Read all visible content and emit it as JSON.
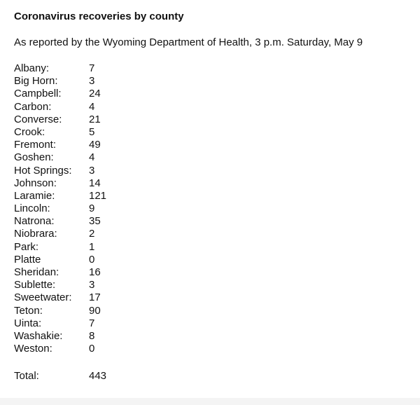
{
  "title": "Coronavirus recoveries by county",
  "subtitle": "As reported by the Wyoming Department of Health, 3 p.m. Saturday, May 9",
  "counties": [
    {
      "name": "Albany:",
      "value": "7"
    },
    {
      "name": "Big Horn:",
      "value": "3"
    },
    {
      "name": "Campbell:",
      "value": "24"
    },
    {
      "name": "Carbon:",
      "value": "4"
    },
    {
      "name": "Converse:",
      "value": "21"
    },
    {
      "name": "Crook:",
      "value": "5"
    },
    {
      "name": "Fremont:",
      "value": "49"
    },
    {
      "name": "Goshen:",
      "value": "4"
    },
    {
      "name": "Hot Springs:",
      "value": "3"
    },
    {
      "name": "Johnson:",
      "value": "14"
    },
    {
      "name": "Laramie:",
      "value": "121"
    },
    {
      "name": "Lincoln:",
      "value": "9"
    },
    {
      "name": "Natrona:",
      "value": "35"
    },
    {
      "name": "Niobrara:",
      "value": "2"
    },
    {
      "name": "Park:",
      "value": "1"
    },
    {
      "name": "Platte",
      "value": "0"
    },
    {
      "name": "Sheridan:",
      "value": "16"
    },
    {
      "name": "Sublette:",
      "value": "3"
    },
    {
      "name": "Sweetwater:",
      "value": "17"
    },
    {
      "name": "Teton:",
      "value": "90"
    },
    {
      "name": "Uinta:",
      "value": "7"
    },
    {
      "name": "Washakie:",
      "value": "8"
    },
    {
      "name": "Weston:",
      "value": "0"
    }
  ],
  "total": {
    "label": "Total:",
    "value": "443"
  }
}
